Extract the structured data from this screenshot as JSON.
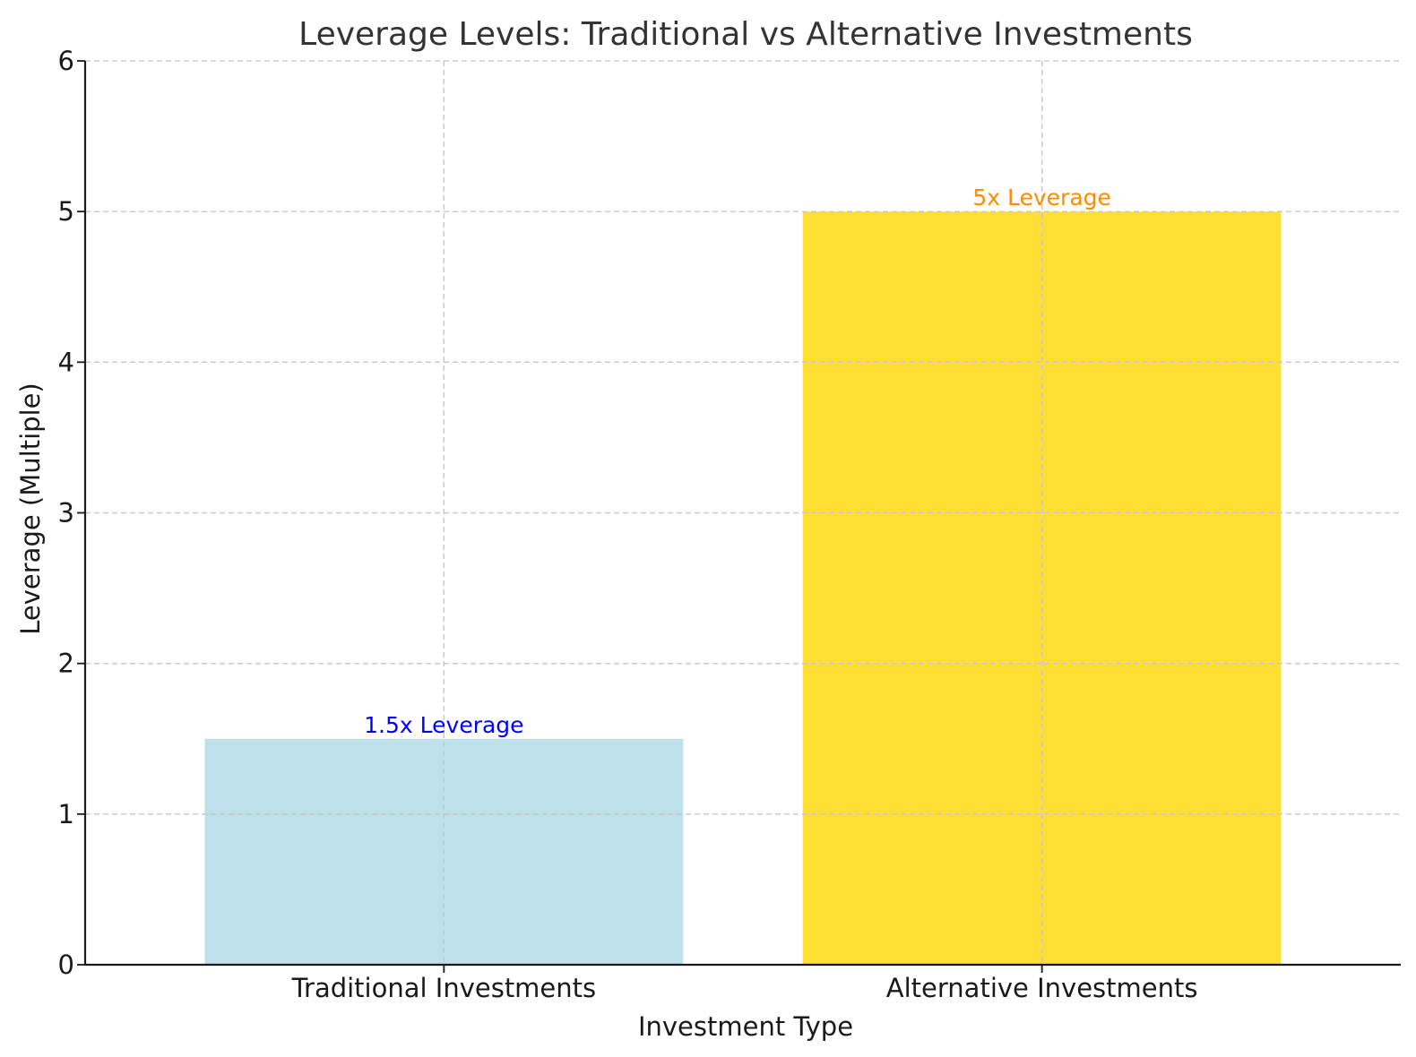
{
  "chart_data": {
    "type": "bar",
    "title": "Leverage Levels: Traditional vs Alternative Investments",
    "xlabel": "Investment Type",
    "ylabel": "Leverage (Multiple)",
    "categories": [
      "Traditional Investments",
      "Alternative Investments"
    ],
    "values": [
      1.5,
      5
    ],
    "bar_colors": [
      "#add8e6",
      "#ffd700"
    ],
    "bar_labels": [
      "1.5x Leverage",
      "5x Leverage"
    ],
    "bar_label_colors": [
      "#0000ff",
      "#ff8c00"
    ],
    "ylim": [
      0,
      6
    ],
    "yticks": [
      "0",
      "1",
      "2",
      "3",
      "4",
      "5",
      "6"
    ],
    "grid": true,
    "bar_alpha": 0.8
  }
}
